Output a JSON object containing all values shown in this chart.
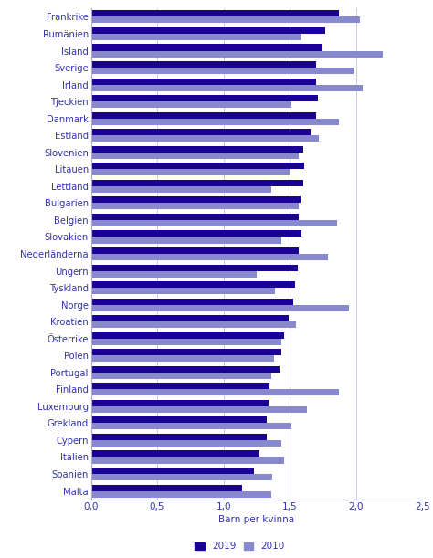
{
  "countries": [
    "Frankrike",
    "Rumänien",
    "Island",
    "Sverige",
    "Irland",
    "Tjeckien",
    "Danmark",
    "Estland",
    "Slovenien",
    "Litauen",
    "Lettland",
    "Bulgarien",
    "Belgien",
    "Slovakien",
    "Nederländerna",
    "Ungern",
    "Tyskland",
    "Norge",
    "Kroatien",
    "Österrike",
    "Polen",
    "Portugal",
    "Finland",
    "Luxemburg",
    "Grekland",
    "Cypern",
    "Italien",
    "Spanien",
    "Malta"
  ],
  "values_2019": [
    1.87,
    1.77,
    1.75,
    1.7,
    1.7,
    1.71,
    1.7,
    1.66,
    1.6,
    1.61,
    1.6,
    1.58,
    1.57,
    1.59,
    1.57,
    1.56,
    1.54,
    1.53,
    1.49,
    1.46,
    1.44,
    1.42,
    1.35,
    1.34,
    1.33,
    1.33,
    1.27,
    1.23,
    1.14
  ],
  "values_2010": [
    2.03,
    1.59,
    2.2,
    1.98,
    2.05,
    1.51,
    1.87,
    1.72,
    1.57,
    1.5,
    1.36,
    1.57,
    1.86,
    1.44,
    1.79,
    1.25,
    1.39,
    1.95,
    1.55,
    1.44,
    1.38,
    1.36,
    1.87,
    1.63,
    1.51,
    1.44,
    1.46,
    1.37,
    1.36
  ],
  "color_2019": "#1a0096",
  "color_2010": "#8888cc",
  "xlabel": "Barn per kvinna",
  "xlim": [
    0,
    2.5
  ],
  "xticks": [
    0.0,
    0.5,
    1.0,
    1.5,
    2.0,
    2.5
  ],
  "xtick_labels": [
    "0,0",
    "0,5",
    "1,0",
    "1,5",
    "2,0",
    "2,5"
  ],
  "legend_2019": "2019",
  "legend_2010": "2010",
  "bar_height": 0.38,
  "text_color": "#3333aa",
  "axis_color": "#aaaacc",
  "grid_color": "#ccccdd",
  "fig_width": 4.74,
  "fig_height": 6.11,
  "dpi": 100
}
